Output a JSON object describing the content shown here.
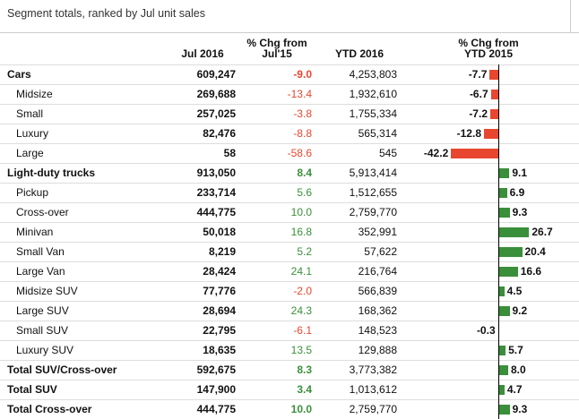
{
  "title": "Segment totals, ranked by Jul unit sales",
  "table": {
    "headers": [
      "Jul 2016",
      "% Chg from Jul'15",
      "YTD 2016",
      "% Chg from YTD 2015"
    ],
    "rows": [
      {
        "segment": "Cars",
        "bold": true,
        "jul": "609,247",
        "chg": "-9.0",
        "ytd": "4,253,803",
        "ytd_chg": -7.7
      },
      {
        "segment": "Midsize",
        "bold": false,
        "jul": "269,688",
        "chg": "-13.4",
        "ytd": "1,932,610",
        "ytd_chg": -6.7
      },
      {
        "segment": "Small",
        "bold": false,
        "jul": "257,025",
        "chg": "-3.8",
        "ytd": "1,755,334",
        "ytd_chg": -7.2
      },
      {
        "segment": "Luxury",
        "bold": false,
        "jul": "82,476",
        "chg": "-8.8",
        "ytd": "565,314",
        "ytd_chg": -12.8
      },
      {
        "segment": "Large",
        "bold": false,
        "jul": "58",
        "chg": "-58.6",
        "ytd": "545",
        "ytd_chg": -42.2
      },
      {
        "segment": "Light-duty trucks",
        "bold": true,
        "jul": "913,050",
        "chg": "8.4",
        "ytd": "5,913,414",
        "ytd_chg": 9.1
      },
      {
        "segment": "Pickup",
        "bold": false,
        "jul": "233,714",
        "chg": "5.6",
        "ytd": "1,512,655",
        "ytd_chg": 6.9
      },
      {
        "segment": "Cross-over",
        "bold": false,
        "jul": "444,775",
        "chg": "10.0",
        "ytd": "2,759,770",
        "ytd_chg": 9.3
      },
      {
        "segment": "Minivan",
        "bold": false,
        "jul": "50,018",
        "chg": "16.8",
        "ytd": "352,991",
        "ytd_chg": 26.7
      },
      {
        "segment": "Small Van",
        "bold": false,
        "jul": "8,219",
        "chg": "5.2",
        "ytd": "57,622",
        "ytd_chg": 20.4
      },
      {
        "segment": "Large Van",
        "bold": false,
        "jul": "28,424",
        "chg": "24.1",
        "ytd": "216,764",
        "ytd_chg": 16.6
      },
      {
        "segment": "Midsize SUV",
        "bold": false,
        "jul": "77,776",
        "chg": "-2.0",
        "ytd": "566,839",
        "ytd_chg": 4.5
      },
      {
        "segment": "Large SUV",
        "bold": false,
        "jul": "28,694",
        "chg": "24.3",
        "ytd": "168,362",
        "ytd_chg": 9.2
      },
      {
        "segment": "Small SUV",
        "bold": false,
        "jul": "22,795",
        "chg": "-6.1",
        "ytd": "148,523",
        "ytd_chg": -0.3
      },
      {
        "segment": "Luxury SUV",
        "bold": false,
        "jul": "18,635",
        "chg": "13.5",
        "ytd": "129,888",
        "ytd_chg": 5.7
      },
      {
        "segment": "Total SUV/Cross-over",
        "bold": true,
        "jul": "592,675",
        "chg": "8.3",
        "ytd": "3,773,382",
        "ytd_chg": 8,
        "ytd_chg_label": "8.0"
      },
      {
        "segment": "Total SUV",
        "bold": true,
        "jul": "147,900",
        "chg": "3.4",
        "ytd": "1,013,612",
        "ytd_chg": 4.7
      },
      {
        "segment": "Total Cross-over",
        "bold": true,
        "jul": "444,775",
        "chg": "10.0",
        "ytd": "2,759,770",
        "ytd_chg": 9.3
      }
    ]
  }
}
